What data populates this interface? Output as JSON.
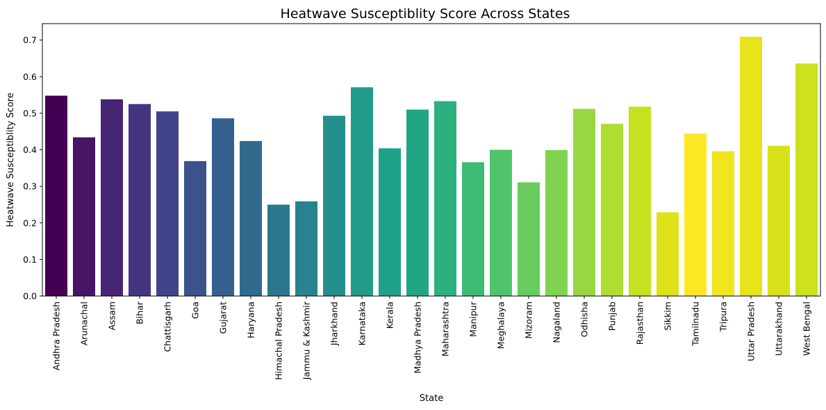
{
  "chart_data": {
    "type": "bar",
    "title": "Heatwave Susceptiblity Score Across States",
    "xlabel": "State",
    "ylabel": "Heatwave Susceptiblity Score",
    "ylim": [
      0,
      0.745
    ],
    "yticks": [
      "0.0",
      "0.1",
      "0.2",
      "0.3",
      "0.4",
      "0.5",
      "0.6",
      "0.7"
    ],
    "grid": false,
    "colormap": "viridis",
    "categories": [
      "Andhra Pradesh",
      "Arunachal",
      "Assam",
      "Bihar",
      "Chattisgarh",
      "Goa",
      "Gujarat",
      "Haryana",
      "Himachal Pradesh",
      "Jammu & Kashmir",
      "Jharkhand",
      "Karnataka",
      "Kerala",
      "Madhya Pradesh",
      "Maharashtra",
      "Manipur",
      "Meghalaya",
      "Mizoram",
      "Nagaland",
      "Odhisha",
      "Punjab",
      "Rajasthan",
      "Sikkim",
      "Tamilnadu",
      "Tripura",
      "Uttar Pradesh",
      "Uttarakhand",
      "West Bengal"
    ],
    "values": [
      0.548,
      0.434,
      0.538,
      0.525,
      0.505,
      0.369,
      0.486,
      0.424,
      0.25,
      0.259,
      0.493,
      0.571,
      0.404,
      0.51,
      0.533,
      0.366,
      0.4,
      0.311,
      0.399,
      0.512,
      0.471,
      0.518,
      0.229,
      0.444,
      0.396,
      0.709,
      0.411,
      0.636
    ],
    "colors": [
      "#440154",
      "#471466",
      "#472575",
      "#453581",
      "#404388",
      "#3b528b",
      "#355f8d",
      "#306b8e",
      "#2c778e",
      "#28838e",
      "#248f8d",
      "#219c89",
      "#1fa088",
      "#21a585",
      "#2cb17e",
      "#3dbb74",
      "#50c46a",
      "#67cc5c",
      "#7fd34e",
      "#97d840",
      "#b0dd31",
      "#c7e020",
      "#dde318",
      "#fde725",
      "#f0e51f",
      "#e7e419",
      "#d8e219",
      "#cde11d"
    ]
  }
}
